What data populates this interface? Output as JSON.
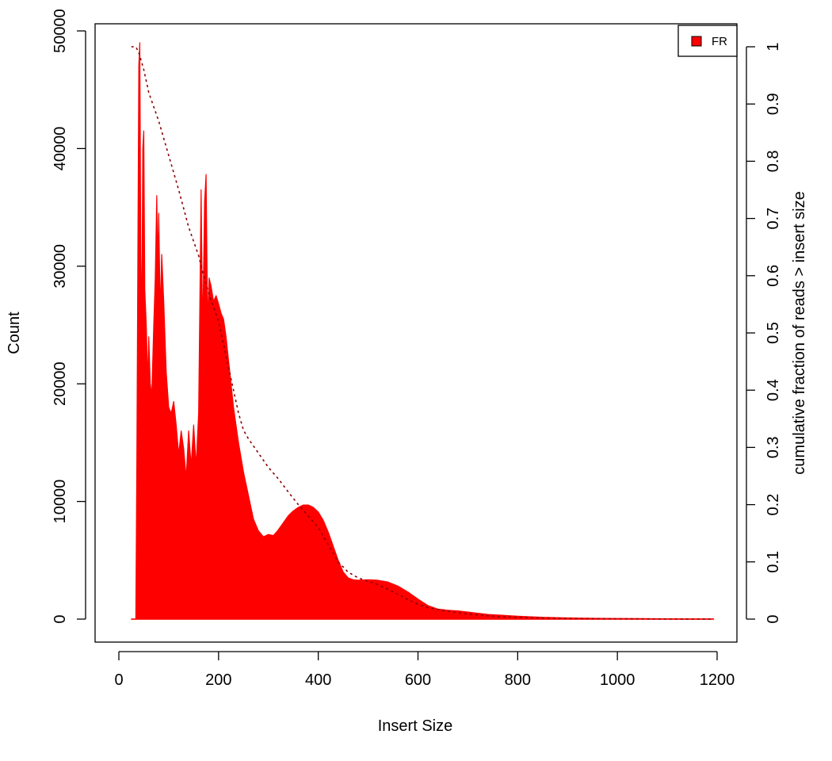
{
  "chart_data": {
    "type": "area",
    "xlabel": "Insert Size",
    "ylabel": "Count",
    "y2label": "cumulative fraction of reads > insert size",
    "xlim": [
      0,
      1200
    ],
    "ylim": [
      0,
      50000
    ],
    "y2lim": [
      0,
      1
    ],
    "xticks": [
      "0",
      "200",
      "400",
      "600",
      "800",
      "1000",
      "1200"
    ],
    "yticks": [
      "0",
      "10000",
      "20000",
      "30000",
      "40000",
      "50000"
    ],
    "y2ticks": [
      "0",
      "0.1",
      "0.2",
      "0.3",
      "0.4",
      "0.5",
      "0.6",
      "0.7",
      "0.8",
      "0.9",
      "1"
    ],
    "legend": {
      "position": "top-right",
      "entries": [
        {
          "label": "FR",
          "color": "#ff0000"
        }
      ]
    },
    "colors": {
      "histogram": "#ff0000",
      "cumulative": "#8b0000"
    },
    "series": [
      {
        "name": "FR",
        "kind": "histogram",
        "x": [
          25,
          34,
          36,
          38,
          40,
          42,
          44,
          46,
          48,
          50,
          52,
          55,
          58,
          60,
          63,
          66,
          70,
          73,
          76,
          78,
          80,
          83,
          86,
          90,
          95,
          100,
          105,
          110,
          115,
          120,
          125,
          130,
          135,
          140,
          145,
          150,
          155,
          160,
          165,
          168,
          172,
          175,
          178,
          181,
          185,
          190,
          195,
          200,
          205,
          210,
          215,
          220,
          225,
          230,
          240,
          250,
          260,
          270,
          280,
          290,
          300,
          310,
          320,
          330,
          340,
          350,
          360,
          370,
          380,
          390,
          400,
          410,
          420,
          430,
          440,
          450,
          460,
          470,
          480,
          500,
          520,
          540,
          560,
          580,
          600,
          620,
          640,
          660,
          680,
          700,
          720,
          740,
          760,
          780,
          800,
          850,
          900,
          950,
          1000,
          1050,
          1100,
          1150,
          1193
        ],
        "y": [
          0,
          0,
          13000,
          30000,
          47000,
          49000,
          31000,
          25000,
          40000,
          41500,
          28000,
          25000,
          20000,
          24000,
          20000,
          19000,
          25000,
          29000,
          36000,
          30000,
          34500,
          26000,
          31000,
          27000,
          21000,
          18000,
          17500,
          18500,
          16500,
          14000,
          16000,
          14500,
          12000,
          16000,
          13000,
          16500,
          13000,
          17500,
          36500,
          24000,
          35500,
          37800,
          25000,
          29000,
          28300,
          27000,
          27500,
          26800,
          26000,
          25500,
          24000,
          22000,
          20000,
          18000,
          15000,
          12500,
          10500,
          8500,
          7500,
          7000,
          7200,
          7100,
          7600,
          8200,
          8800,
          9200,
          9500,
          9700,
          9700,
          9500,
          9100,
          8400,
          7400,
          6200,
          5000,
          4000,
          3500,
          3350,
          3300,
          3350,
          3300,
          3150,
          2800,
          2300,
          1700,
          1150,
          850,
          750,
          700,
          600,
          500,
          400,
          350,
          300,
          250,
          150,
          100,
          70,
          50,
          40,
          30,
          20,
          15
        ]
      },
      {
        "name": "cumulative",
        "kind": "line",
        "axis": "y2",
        "style": "dotted",
        "x": [
          25,
          34,
          40,
          50,
          60,
          70,
          80,
          100,
          120,
          140,
          160,
          170,
          180,
          190,
          200,
          210,
          220,
          230,
          240,
          250,
          260,
          280,
          300,
          320,
          340,
          360,
          380,
          400,
          420,
          440,
          460,
          480,
          500,
          520,
          540,
          560,
          580,
          600,
          620,
          650,
          700,
          750,
          800,
          900,
          1000,
          1100,
          1193
        ],
        "y": [
          1.0,
          1.0,
          0.99,
          0.96,
          0.92,
          0.895,
          0.87,
          0.81,
          0.75,
          0.685,
          0.635,
          0.6,
          0.57,
          0.545,
          0.52,
          0.48,
          0.44,
          0.4,
          0.36,
          0.33,
          0.315,
          0.29,
          0.265,
          0.245,
          0.222,
          0.2,
          0.18,
          0.16,
          0.13,
          0.1,
          0.082,
          0.072,
          0.066,
          0.06,
          0.052,
          0.043,
          0.034,
          0.026,
          0.02,
          0.015,
          0.009,
          0.005,
          0.003,
          0.001,
          0.0005,
          0.0002,
          0.0
        ]
      }
    ]
  }
}
